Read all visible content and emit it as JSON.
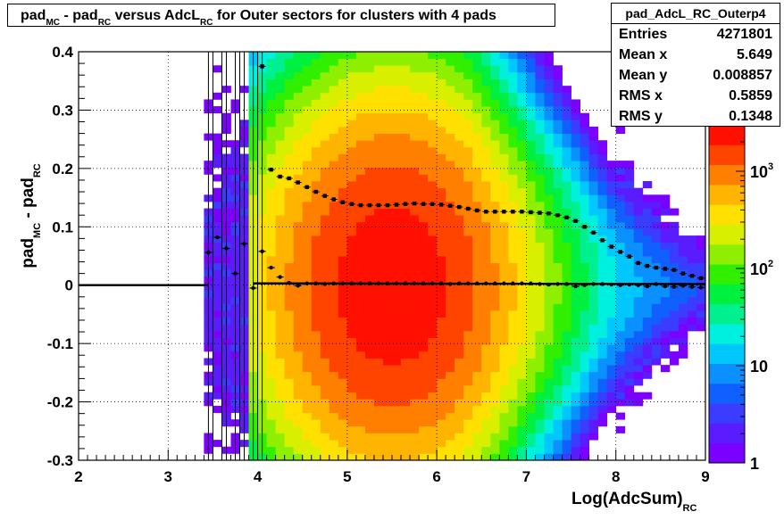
{
  "title": {
    "main": "pad",
    "sub1": "MC",
    "mid1": " - pad",
    "sub2": "RC",
    "mid2": " versus AdcL",
    "sub3": "RC",
    "tail": " for Outer sectors for clusters with 4 pads"
  },
  "stats": {
    "name": "pad_AdcL_RC_Outerp4",
    "rows": [
      {
        "label": "Entries",
        "value": "4271801"
      },
      {
        "label": "Mean x",
        "value": "5.649"
      },
      {
        "label": "Mean y",
        "value": "0.008857"
      },
      {
        "label": "RMS x",
        "value": "0.5859"
      },
      {
        "label": "RMS y",
        "value": "0.1348"
      }
    ]
  },
  "palette": [
    "#7a00ff",
    "#5a1cff",
    "#3a3cff",
    "#1060ff",
    "#0a90ff",
    "#00c8ff",
    "#00f0e0",
    "#00f090",
    "#00f040",
    "#30f000",
    "#8ef000",
    "#d8f000",
    "#ffe000",
    "#ffb400",
    "#ff8000",
    "#ff4400",
    "#ff1000"
  ],
  "chart_data": {
    "type": "heatmap",
    "xlabel": "Log(AdcSum)",
    "xlabel_sub": "RC",
    "ylabel": "pad",
    "ylabel_sub1": "MC",
    "ylabel_mid": " - pad",
    "ylabel_sub2": "RC",
    "xlim": [
      2,
      9
    ],
    "ylim": [
      -0.3,
      0.4
    ],
    "x_ticks": [
      "2",
      "3",
      "4",
      "5",
      "6",
      "7",
      "8",
      "9"
    ],
    "y_ticks": [
      "-0.3",
      "-0.2",
      "-0.1",
      "0",
      "0.1",
      "0.2",
      "0.3",
      "0.4"
    ],
    "z_scale": "log",
    "z_ticks": [
      {
        "value": 1,
        "base": "1",
        "exp": ""
      },
      {
        "value": 10,
        "base": "10",
        "exp": ""
      },
      {
        "value": 100,
        "base": "10",
        "exp": "2"
      },
      {
        "value": 1000,
        "base": "10",
        "exp": "3"
      }
    ],
    "z_range": [
      1,
      3000
    ],
    "grid": true,
    "profile_mean": {
      "x": [
        3.45,
        3.55,
        3.65,
        3.75,
        3.85,
        3.95,
        4.05,
        4.15,
        4.25,
        4.35,
        4.45,
        4.55,
        4.65,
        4.75,
        4.85,
        4.95,
        5.05,
        5.15,
        5.25,
        5.35,
        5.45,
        5.55,
        5.65,
        5.75,
        5.85,
        5.95,
        6.05,
        6.15,
        6.25,
        6.35,
        6.45,
        6.55,
        6.65,
        6.75,
        6.85,
        6.95,
        7.05,
        7.15,
        7.25,
        7.35,
        7.45,
        7.55,
        7.65,
        7.75,
        7.85,
        7.95,
        8.05,
        8.15,
        8.25,
        8.35,
        8.45,
        8.55,
        8.65,
        8.75,
        8.85,
        8.95
      ],
      "y": [
        0.056,
        0.082,
        0.063,
        0.02,
        0.071,
        -0.005,
        0.058,
        0.03,
        0.014,
        0.004,
        -0.001,
        0.003,
        0.003,
        0.002,
        0.003,
        0.003,
        0.003,
        0.003,
        0.003,
        0.003,
        0.003,
        0.003,
        0.003,
        0.003,
        0.003,
        0.003,
        0.003,
        0.002,
        0.003,
        0.003,
        0.003,
        0.003,
        0.003,
        0.003,
        0.003,
        0.003,
        0.003,
        0.002,
        0.001,
        0.002,
        0.002,
        -0.002,
        0.0,
        0.002,
        0.002,
        0.001,
        0.0,
        0.001,
        0.0,
        -0.002,
        0.002,
        -0.002,
        -0.003,
        -0.001,
        -0.003,
        -0.004
      ]
    },
    "profile_rms": {
      "x": [
        4.05,
        4.15,
        4.25,
        4.35,
        4.45,
        4.55,
        4.65,
        4.75,
        4.85,
        4.95,
        5.05,
        5.15,
        5.25,
        5.35,
        5.45,
        5.55,
        5.65,
        5.75,
        5.85,
        5.95,
        6.05,
        6.15,
        6.25,
        6.35,
        6.45,
        6.55,
        6.65,
        6.75,
        6.85,
        6.95,
        7.05,
        7.15,
        7.25,
        7.35,
        7.45,
        7.55,
        7.65,
        7.75,
        7.85,
        7.95,
        8.05,
        8.15,
        8.25,
        8.35,
        8.45,
        8.55,
        8.65,
        8.75,
        8.85,
        8.95
      ],
      "y": [
        0.375,
        0.198,
        0.186,
        0.183,
        0.176,
        0.168,
        0.16,
        0.153,
        0.147,
        0.142,
        0.139,
        0.137,
        0.137,
        0.137,
        0.137,
        0.138,
        0.139,
        0.14,
        0.139,
        0.139,
        0.138,
        0.136,
        0.134,
        0.131,
        0.128,
        0.126,
        0.126,
        0.126,
        0.126,
        0.126,
        0.125,
        0.124,
        0.123,
        0.12,
        0.116,
        0.11,
        0.1,
        0.09,
        0.077,
        0.066,
        0.057,
        0.049,
        0.038,
        0.033,
        0.03,
        0.028,
        0.026,
        0.02,
        0.016,
        0.012
      ]
    },
    "sparse_spikes_x": [
      3.45,
      3.5,
      3.6,
      3.65,
      3.75,
      3.8,
      3.85,
      3.95,
      4.0,
      4.05
    ]
  }
}
